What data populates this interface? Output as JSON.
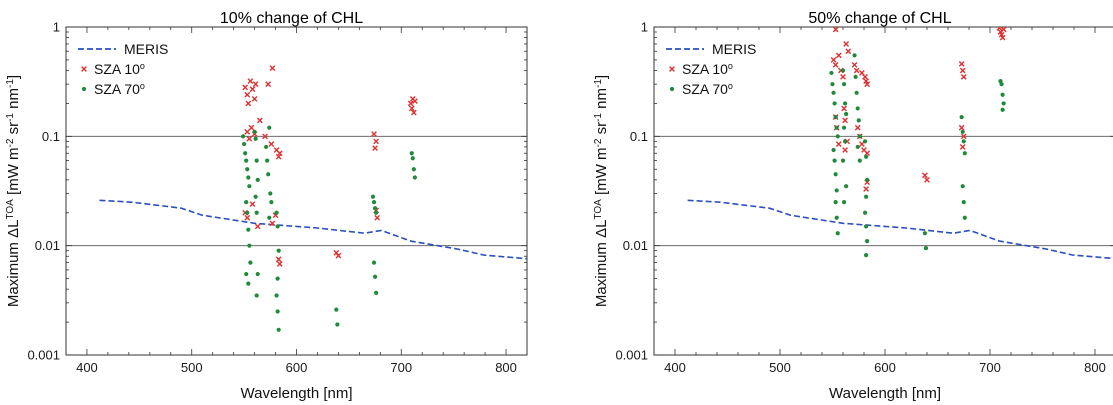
{
  "colors": {
    "meris": "#2a4fbf",
    "sza10": "#e03030",
    "sza70": "#1f8a3a",
    "axis": "#333333"
  },
  "chart_data": [
    {
      "type": "scatter",
      "title": "10% change of CHL",
      "xlabel": "Wavelength [nm]",
      "ylabel": "Maximum ΔL^TOA [mW m^-2 sr^-1 nm^-1]",
      "ylabel_parts": {
        "pre": "Maximum ΔL",
        "sup1": "TOA",
        "mid1": " [mW m",
        "sup2": "-2",
        "mid2": " sr",
        "sup3": "-1",
        "mid3": " nm",
        "sup4": "-1",
        "post": "]"
      },
      "xlim": [
        380,
        820
      ],
      "ylim": [
        0.001,
        1
      ],
      "yscale": "log",
      "xticks": [
        400,
        500,
        600,
        700,
        800
      ],
      "xtick_labels": [
        "400",
        "500",
        "600",
        "700",
        "800"
      ],
      "yticks": [
        0.001,
        0.01,
        0.1,
        1
      ],
      "ytick_labels": [
        "0.001",
        "0.01",
        "0.1",
        "1"
      ],
      "hlines": [
        0.01,
        0.1
      ],
      "legend_position": "top-left",
      "legend": [
        {
          "name": "MERIS",
          "marker": "line"
        },
        {
          "name": "SZA 10",
          "sup": "o",
          "marker": "x"
        },
        {
          "name": "SZA 70",
          "sup": "o",
          "marker": "dot"
        }
      ],
      "series": [
        {
          "name": "MERIS",
          "x": [
            412,
            443,
            490,
            510,
            560,
            620,
            665,
            681,
            709,
            754,
            779,
            820
          ],
          "y": [
            0.026,
            0.025,
            0.022,
            0.019,
            0.016,
            0.0145,
            0.013,
            0.0138,
            0.011,
            0.0093,
            0.0082,
            0.0076
          ]
        },
        {
          "name": "SZA 10",
          "points": [
            [
              551,
              0.28
            ],
            [
              553,
              0.24
            ],
            [
              556,
              0.32
            ],
            [
              558,
              0.27
            ],
            [
              560,
              0.22
            ],
            [
              561,
              0.3
            ],
            [
              554,
              0.2
            ],
            [
              553,
              0.11
            ],
            [
              555,
              0.095
            ],
            [
              557,
              0.12
            ],
            [
              560,
              0.105
            ],
            [
              565,
              0.14
            ],
            [
              570,
              0.1
            ],
            [
              573,
              0.3
            ],
            [
              577,
              0.42
            ],
            [
              576,
              0.085
            ],
            [
              581,
              0.075
            ],
            [
              583,
              0.065
            ],
            [
              584,
              0.07
            ],
            [
              551,
              0.02
            ],
            [
              553,
              0.018
            ],
            [
              558,
              0.024
            ],
            [
              563,
              0.015
            ],
            [
              577,
              0.016
            ],
            [
              580,
              0.019
            ],
            [
              583,
              0.0075
            ],
            [
              584,
              0.0068
            ],
            [
              638,
              0.0086
            ],
            [
              640,
              0.0081
            ],
            [
              674,
              0.105
            ],
            [
              676,
              0.09
            ],
            [
              675,
              0.078
            ],
            [
              677,
              0.018
            ],
            [
              676,
              0.021
            ],
            [
              709,
              0.2
            ],
            [
              710,
              0.18
            ],
            [
              711,
              0.22
            ],
            [
              712,
              0.165
            ],
            [
              713,
              0.21
            ]
          ]
        },
        {
          "name": "SZA 70",
          "points": [
            [
              549,
              0.1
            ],
            [
              550,
              0.085
            ],
            [
              551,
              0.07
            ],
            [
              552,
              0.06
            ],
            [
              553,
              0.05
            ],
            [
              554,
              0.042
            ],
            [
              555,
              0.035
            ],
            [
              552,
              0.025
            ],
            [
              553,
              0.02
            ],
            [
              554,
              0.014
            ],
            [
              555,
              0.01
            ],
            [
              556,
              0.007
            ],
            [
              552,
              0.0055
            ],
            [
              554,
              0.0045
            ],
            [
              560,
              0.11
            ],
            [
              561,
              0.095
            ],
            [
              562,
              0.06
            ],
            [
              563,
              0.04
            ],
            [
              561,
              0.028
            ],
            [
              562,
              0.02
            ],
            [
              563,
              0.0055
            ],
            [
              562,
              0.0035
            ],
            [
              571,
              0.08
            ],
            [
              572,
              0.06
            ],
            [
              573,
              0.045
            ],
            [
              574,
              0.12
            ],
            [
              575,
              0.03
            ],
            [
              576,
              0.025
            ],
            [
              574,
              0.018
            ],
            [
              581,
              0.02
            ],
            [
              582,
              0.015
            ],
            [
              583,
              0.009
            ],
            [
              582,
              0.005
            ],
            [
              581,
              0.0035
            ],
            [
              582,
              0.0025
            ],
            [
              583,
              0.0017
            ],
            [
              638,
              0.0026
            ],
            [
              639,
              0.0019
            ],
            [
              673,
              0.028
            ],
            [
              674,
              0.025
            ],
            [
              675,
              0.022
            ],
            [
              676,
              0.02
            ],
            [
              674,
              0.007
            ],
            [
              675,
              0.0052
            ],
            [
              676,
              0.0037
            ],
            [
              710,
              0.07
            ],
            [
              711,
              0.063
            ],
            [
              712,
              0.05
            ],
            [
              713,
              0.042
            ]
          ]
        }
      ]
    },
    {
      "type": "scatter",
      "title": "50% change of CHL",
      "xlabel": "Wavelength [nm]",
      "ylabel": "Maximum ΔL^TOA [mW m^-2 sr^-1 nm^-1]",
      "ylabel_parts": {
        "pre": "Maximum ΔL",
        "sup1": "TOA",
        "mid1": " [mW m",
        "sup2": "-2",
        "mid2": " sr",
        "sup3": "-1",
        "mid3": " nm",
        "sup4": "-1",
        "post": "]"
      },
      "xlim": [
        380,
        820
      ],
      "ylim": [
        0.001,
        1
      ],
      "yscale": "log",
      "xticks": [
        400,
        500,
        600,
        700,
        800
      ],
      "xtick_labels": [
        "400",
        "500",
        "600",
        "700",
        "800"
      ],
      "yticks": [
        0.001,
        0.01,
        0.1,
        1
      ],
      "ytick_labels": [
        "0.001",
        "0.01",
        "0.1",
        "1"
      ],
      "hlines": [
        0.01,
        0.1
      ],
      "legend_position": "top-left",
      "legend": [
        {
          "name": "MERIS",
          "marker": "line"
        },
        {
          "name": "SZA 10",
          "sup": "o",
          "marker": "x"
        },
        {
          "name": "SZA 70",
          "sup": "o",
          "marker": "dot"
        }
      ],
      "series": [
        {
          "name": "MERIS",
          "x": [
            412,
            443,
            490,
            510,
            560,
            620,
            665,
            681,
            709,
            754,
            779,
            820
          ],
          "y": [
            0.026,
            0.025,
            0.022,
            0.019,
            0.016,
            0.0145,
            0.013,
            0.0138,
            0.011,
            0.0093,
            0.0082,
            0.0076
          ]
        },
        {
          "name": "SZA 10",
          "points": [
            [
              553,
              0.95
            ],
            [
              551,
              0.5
            ],
            [
              553,
              0.45
            ],
            [
              556,
              0.55
            ],
            [
              558,
              0.4
            ],
            [
              560,
              0.35
            ],
            [
              563,
              0.7
            ],
            [
              565,
              0.6
            ],
            [
              561,
              0.18
            ],
            [
              562,
              0.14
            ],
            [
              564,
              0.09
            ],
            [
              553,
              0.15
            ],
            [
              554,
              0.12
            ],
            [
              556,
              0.085
            ],
            [
              571,
              0.45
            ],
            [
              573,
              0.4
            ],
            [
              578,
              0.38
            ],
            [
              581,
              0.35
            ],
            [
              582,
              0.32
            ],
            [
              583,
              0.3
            ],
            [
              574,
              0.12
            ],
            [
              576,
              0.1
            ],
            [
              578,
              0.085
            ],
            [
              580,
              0.075
            ],
            [
              583,
              0.07
            ],
            [
              562,
              0.075
            ],
            [
              583,
              0.038
            ],
            [
              582,
              0.033
            ],
            [
              638,
              0.044
            ],
            [
              640,
              0.04
            ],
            [
              673,
              0.46
            ],
            [
              674,
              0.4
            ],
            [
              675,
              0.35
            ],
            [
              673,
              0.12
            ],
            [
              675,
              0.1
            ],
            [
              674,
              0.08
            ],
            [
              709,
              0.98
            ],
            [
              710,
              0.9
            ],
            [
              711,
              0.85
            ],
            [
              712,
              0.8
            ],
            [
              713,
              0.95
            ]
          ]
        },
        {
          "name": "SZA 70",
          "points": [
            [
              549,
              0.38
            ],
            [
              550,
              0.3
            ],
            [
              551,
              0.25
            ],
            [
              552,
              0.2
            ],
            [
              553,
              0.15
            ],
            [
              554,
              0.12
            ],
            [
              555,
              0.1
            ],
            [
              551,
              0.075
            ],
            [
              552,
              0.06
            ],
            [
              553,
              0.045
            ],
            [
              554,
              0.032
            ],
            [
              553,
              0.025
            ],
            [
              554,
              0.018
            ],
            [
              555,
              0.013
            ],
            [
              560,
              0.4
            ],
            [
              561,
              0.3
            ],
            [
              562,
              0.2
            ],
            [
              563,
              0.16
            ],
            [
              561,
              0.12
            ],
            [
              562,
              0.09
            ],
            [
              560,
              0.06
            ],
            [
              563,
              0.035
            ],
            [
              561,
              0.025
            ],
            [
              571,
              0.55
            ],
            [
              572,
              0.35
            ],
            [
              573,
              0.25
            ],
            [
              574,
              0.18
            ],
            [
              575,
              0.14
            ],
            [
              576,
              0.1
            ],
            [
              574,
              0.08
            ],
            [
              576,
              0.06
            ],
            [
              581,
              0.09
            ],
            [
              582,
              0.065
            ],
            [
              583,
              0.04
            ],
            [
              582,
              0.028
            ],
            [
              581,
              0.02
            ],
            [
              582,
              0.015
            ],
            [
              583,
              0.011
            ],
            [
              582,
              0.0082
            ],
            [
              638,
              0.013
            ],
            [
              639,
              0.0095
            ],
            [
              673,
              0.15
            ],
            [
              674,
              0.11
            ],
            [
              675,
              0.09
            ],
            [
              676,
              0.07
            ],
            [
              674,
              0.035
            ],
            [
              675,
              0.025
            ],
            [
              676,
              0.018
            ],
            [
              710,
              0.32
            ],
            [
              711,
              0.3
            ],
            [
              712,
              0.24
            ],
            [
              713,
              0.2
            ],
            [
              712,
              0.175
            ]
          ]
        }
      ]
    }
  ]
}
